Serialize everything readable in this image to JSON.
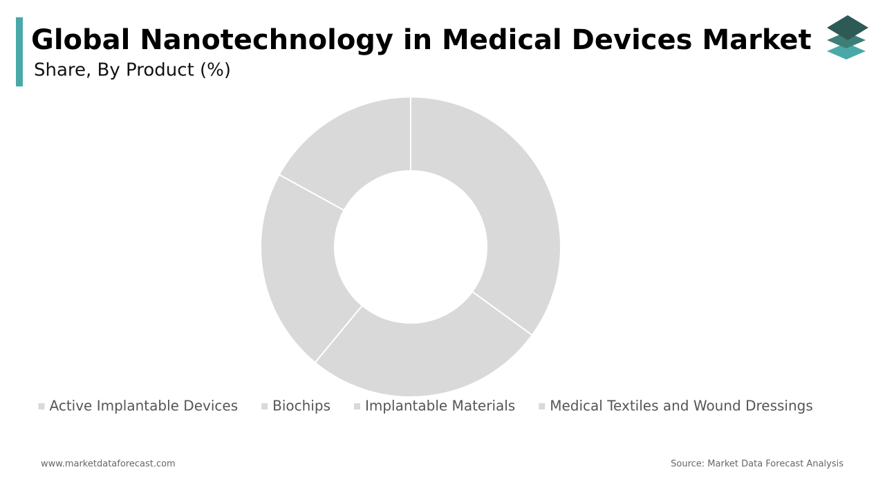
{
  "chart_data": {
    "type": "donut",
    "title": "Global Nanotechnology in Medical Devices Market",
    "subtitle": "Share, By Product  (%)",
    "categories": [
      "Active Implantable Devices",
      "Biochips",
      "Implantable Materials",
      "Medical Textiles and Wound Dressings"
    ],
    "values": [
      35,
      26,
      22,
      17
    ],
    "colors": [
      "#d9d9d9",
      "#d9d9d9",
      "#d9d9d9",
      "#d9d9d9"
    ],
    "legend": "bottom"
  },
  "footer": {
    "website": "www.marketdataforecast.com",
    "source": "Source: Market Data Forecast Analysis"
  }
}
